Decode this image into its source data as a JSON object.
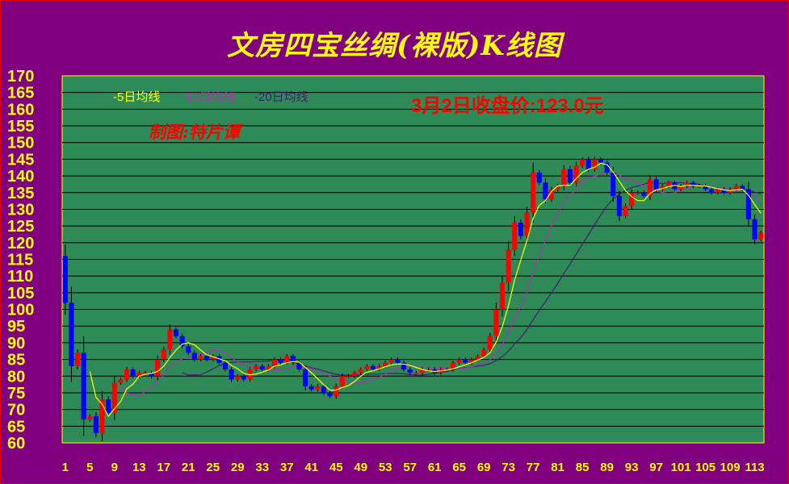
{
  "title": "文房四宝丝绸(裸版)K线图",
  "legend": {
    "ma5": "-5日均线",
    "ma10": "-10日均线",
    "ma20": "-20日均线"
  },
  "price_note": "3月2日收盘价:123.0元",
  "author": "制图:特片谭",
  "colors": {
    "background": "#800080",
    "plot": "#2E8B57",
    "up": "#FF0000",
    "down": "#0000FF",
    "ma5": "#FFFF00",
    "ma10": "#B030B0",
    "ma20": "#402070",
    "axis_text": "#FFFF00"
  },
  "chart_data": {
    "type": "candlestick",
    "ylim": [
      60,
      170
    ],
    "yticks": [
      60,
      65,
      70,
      75,
      80,
      85,
      90,
      95,
      100,
      105,
      110,
      115,
      120,
      125,
      130,
      135,
      140,
      145,
      150,
      155,
      160,
      165,
      170
    ],
    "xticks": [
      1,
      5,
      9,
      13,
      17,
      21,
      25,
      29,
      33,
      37,
      41,
      45,
      49,
      53,
      57,
      61,
      65,
      69,
      73,
      77,
      81,
      85,
      89,
      93,
      97,
      101,
      105,
      109,
      113
    ],
    "xlim": [
      1,
      114
    ],
    "grid": true,
    "closes": [
      102,
      83,
      87,
      67,
      68,
      63,
      73,
      69,
      78,
      79,
      82,
      80,
      81,
      81,
      80,
      85,
      88,
      94,
      92,
      89,
      87,
      85,
      86,
      85,
      86,
      84,
      82,
      79,
      80,
      79,
      82,
      83,
      82,
      83,
      85,
      84,
      86,
      84,
      82,
      77,
      76,
      77,
      75,
      74,
      77,
      80,
      80,
      81,
      82,
      83,
      82,
      83,
      84,
      85,
      84,
      82,
      81,
      81,
      82,
      82,
      81,
      82,
      82,
      84,
      85,
      84,
      85,
      86,
      88,
      92,
      100,
      108,
      118,
      126,
      122,
      129,
      141,
      138,
      133,
      136,
      137,
      142,
      138,
      143,
      145,
      142,
      145,
      144,
      141,
      134,
      128,
      131,
      135,
      135,
      134,
      139,
      136,
      137,
      138,
      136,
      137,
      138,
      137,
      137,
      136,
      135,
      136,
      135,
      136,
      137,
      136,
      127,
      121,
      123
    ]
  }
}
